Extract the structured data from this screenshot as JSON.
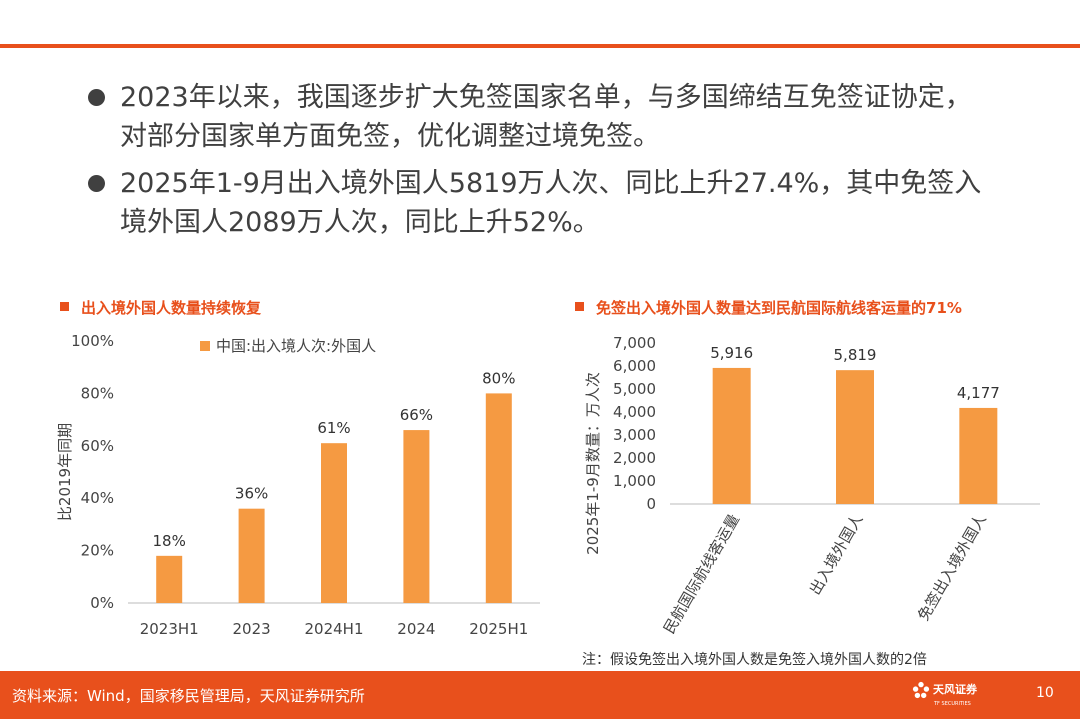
{
  "bullets": [
    {
      "line1": "2023年以来，我国逐步扩大免签国家名单，与多国缔结互免签证协定，",
      "line2": "对部分国家单方面免签，优化调整过境免签。"
    },
    {
      "line1": "2025年1-9月出入境外国人5819万人次、同比上升27.4%，其中免签入",
      "line2": "境外国人2089万人次，同比上升52%。"
    }
  ],
  "chart_left_title": "出入境外国人数量持续恢复",
  "chart_right_title": "免签出入境外国人数量达到民航国际航线客运量的71%",
  "colors": {
    "accent": "#e8501c",
    "bar": "#f59a42",
    "text": "#404040"
  },
  "chart_data": [
    {
      "type": "bar",
      "title": "出入境外国人数量持续恢复",
      "categories": [
        "2023H1",
        "2023",
        "2024H1",
        "2024",
        "2025H1"
      ],
      "series": [
        {
          "name": "中国:出入境人次:外国人",
          "values": [
            18,
            36,
            61,
            66,
            80
          ]
        }
      ],
      "data_labels": [
        "18%",
        "36%",
        "61%",
        "66%",
        "80%"
      ],
      "ylabel": "比2019年同期",
      "ylim": [
        0,
        100
      ],
      "yticks": [
        "0%",
        "20%",
        "40%",
        "60%",
        "80%",
        "100%"
      ],
      "legend": "top",
      "grid": false
    },
    {
      "type": "bar",
      "title": "免签出入境外国人数量达到民航国际航线客运量的71%",
      "categories": [
        "民航国际航线客运量",
        "出入境外国人",
        "免签出入境外国人"
      ],
      "values": [
        5916,
        5819,
        4177
      ],
      "data_labels": [
        "5,916",
        "5,819",
        "4,177"
      ],
      "ylabel": "2025年1-9月数量：万人次",
      "ylim": [
        0,
        7000
      ],
      "yticks": [
        "0",
        "1,000",
        "2,000",
        "3,000",
        "4,000",
        "5,000",
        "6,000",
        "7,000"
      ],
      "grid": false
    }
  ],
  "note": "注：假设免签出入境外国人数是免签入境外国人数的2倍",
  "footer": {
    "source": "资料来源：Wind，国家移民管理局，天风证券研究所",
    "logo_text": "天风证券",
    "logo_sub": "TF SECURITIES",
    "page": "10"
  }
}
